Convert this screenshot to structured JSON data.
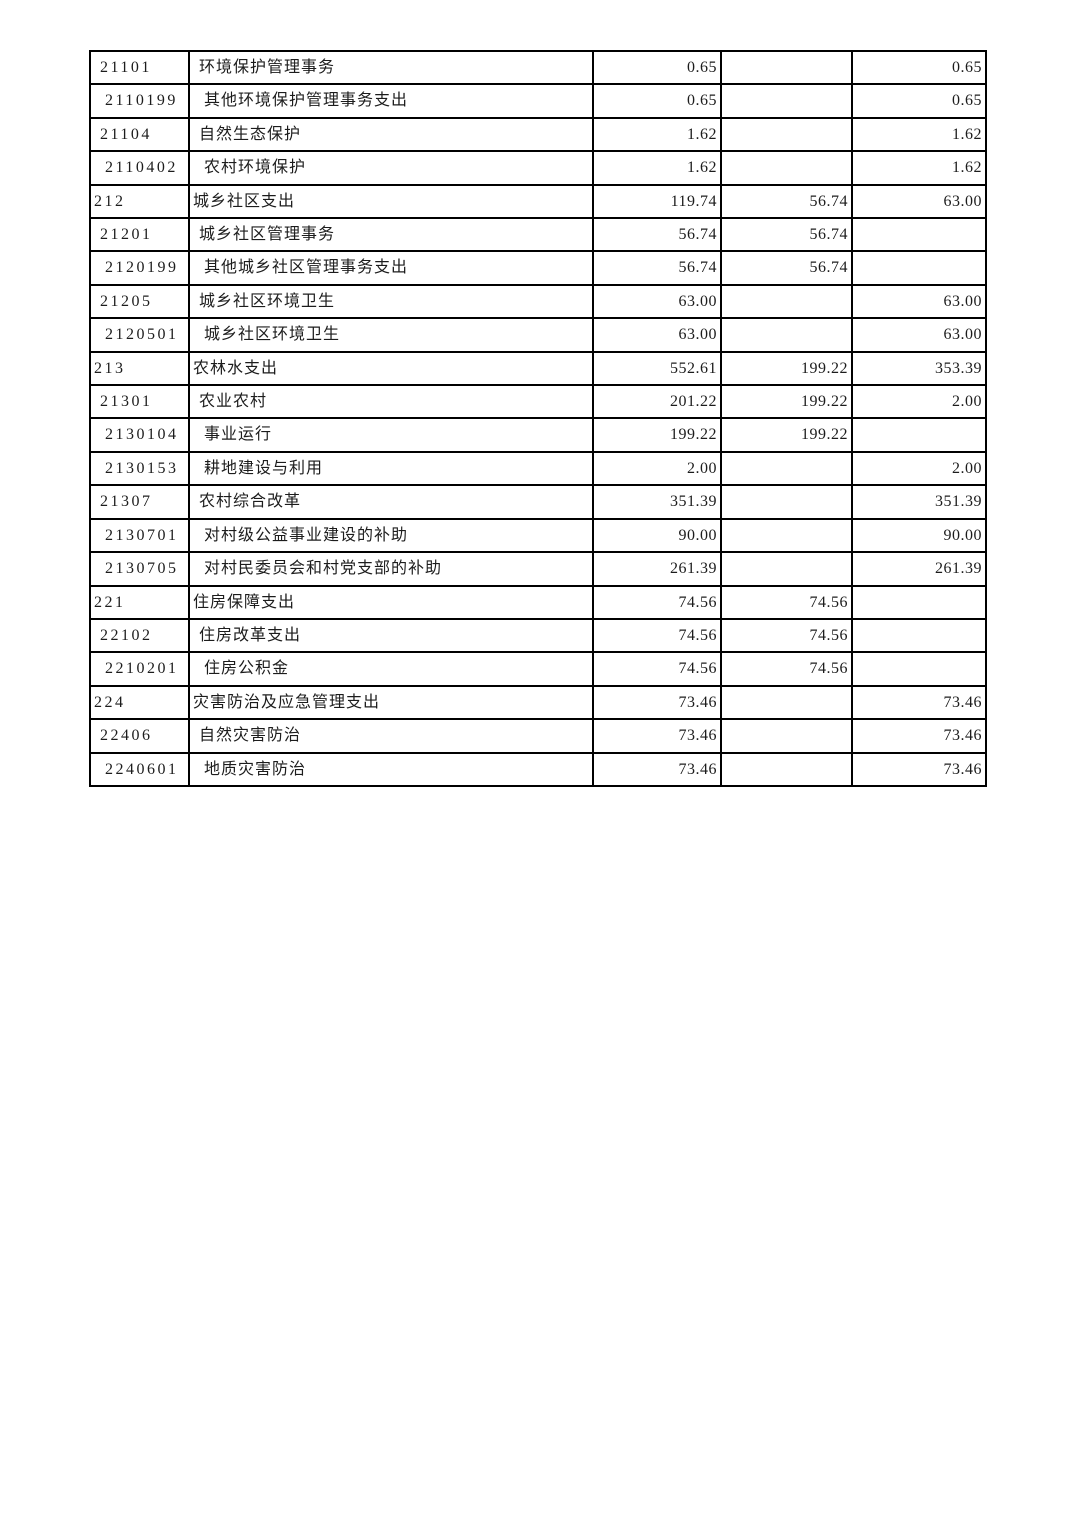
{
  "table": {
    "rows": [
      {
        "code": "21101",
        "name": "环境保护管理事务",
        "level": 2,
        "values": [
          "0.65",
          "",
          "0.65"
        ]
      },
      {
        "code": "2110199",
        "name": "其他环境保护管理事务支出",
        "level": 3,
        "values": [
          "0.65",
          "",
          "0.65"
        ]
      },
      {
        "code": "21104",
        "name": "自然生态保护",
        "level": 2,
        "values": [
          "1.62",
          "",
          "1.62"
        ]
      },
      {
        "code": "2110402",
        "name": "农村环境保护",
        "level": 3,
        "values": [
          "1.62",
          "",
          "1.62"
        ]
      },
      {
        "code": "212",
        "name": "城乡社区支出",
        "level": 1,
        "values": [
          "119.74",
          "56.74",
          "63.00"
        ]
      },
      {
        "code": "21201",
        "name": "城乡社区管理事务",
        "level": 2,
        "values": [
          "56.74",
          "56.74",
          ""
        ]
      },
      {
        "code": "2120199",
        "name": "其他城乡社区管理事务支出",
        "level": 3,
        "values": [
          "56.74",
          "56.74",
          ""
        ]
      },
      {
        "code": "21205",
        "name": "城乡社区环境卫生",
        "level": 2,
        "values": [
          "63.00",
          "",
          "63.00"
        ]
      },
      {
        "code": "2120501",
        "name": "城乡社区环境卫生",
        "level": 3,
        "values": [
          "63.00",
          "",
          "63.00"
        ]
      },
      {
        "code": "213",
        "name": "农林水支出",
        "level": 1,
        "values": [
          "552.61",
          "199.22",
          "353.39"
        ]
      },
      {
        "code": "21301",
        "name": "农业农村",
        "level": 2,
        "values": [
          "201.22",
          "199.22",
          "2.00"
        ]
      },
      {
        "code": "2130104",
        "name": "事业运行",
        "level": 3,
        "values": [
          "199.22",
          "199.22",
          ""
        ]
      },
      {
        "code": "2130153",
        "name": "耕地建设与利用",
        "level": 3,
        "values": [
          "2.00",
          "",
          "2.00"
        ]
      },
      {
        "code": "21307",
        "name": "农村综合改革",
        "level": 2,
        "values": [
          "351.39",
          "",
          "351.39"
        ]
      },
      {
        "code": "2130701",
        "name": "对村级公益事业建设的补助",
        "level": 3,
        "values": [
          "90.00",
          "",
          "90.00"
        ]
      },
      {
        "code": "2130705",
        "name": "对村民委员会和村党支部的补助",
        "level": 3,
        "values": [
          "261.39",
          "",
          "261.39"
        ]
      },
      {
        "code": "221",
        "name": "住房保障支出",
        "level": 1,
        "values": [
          "74.56",
          "74.56",
          ""
        ]
      },
      {
        "code": "22102",
        "name": "住房改革支出",
        "level": 2,
        "values": [
          "74.56",
          "74.56",
          ""
        ]
      },
      {
        "code": "2210201",
        "name": "住房公积金",
        "level": 3,
        "values": [
          "74.56",
          "74.56",
          ""
        ]
      },
      {
        "code": "224",
        "name": "灾害防治及应急管理支出",
        "level": 1,
        "values": [
          "73.46",
          "",
          "73.46"
        ]
      },
      {
        "code": "22406",
        "name": "自然灾害防治",
        "level": 2,
        "values": [
          "73.46",
          "",
          "73.46"
        ]
      },
      {
        "code": "2240601",
        "name": "地质灾害防治",
        "level": 3,
        "values": [
          "73.46",
          "",
          "73.46"
        ]
      }
    ],
    "colors": {
      "border": "#000000",
      "text": "#1c1c1c",
      "page_background": "#ffffff"
    }
  }
}
